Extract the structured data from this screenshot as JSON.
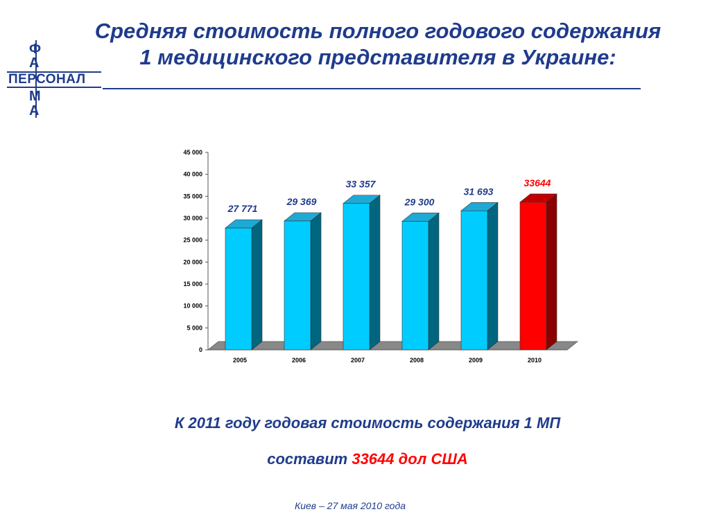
{
  "logo": {
    "letters_top": [
      "Ф",
      "А"
    ],
    "word": "ПЕРСОНАЛ",
    "letters_bottom": [
      "М",
      "А"
    ]
  },
  "header": {
    "title_line1": "Средняя стоимость полного годового содержания",
    "title_line2": "1 медицинского представителя в Украине:"
  },
  "chart_data": {
    "type": "bar",
    "categories": [
      "2005",
      "2006",
      "2007",
      "2008",
      "2009",
      "2010"
    ],
    "values": [
      27771,
      29369,
      33357,
      29300,
      31693,
      33644
    ],
    "data_labels": [
      "27 771",
      "29 369",
      "33 357",
      "29 300",
      "31 693",
      "33644"
    ],
    "ylim": [
      0,
      45000
    ],
    "yticks": [
      0,
      5000,
      10000,
      15000,
      20000,
      25000,
      30000,
      35000,
      40000,
      45000
    ],
    "ytick_labels": [
      "0",
      "5 000",
      "10 000",
      "15 000",
      "20 000",
      "25 000",
      "30 000",
      "35 000",
      "40 000",
      "45 000"
    ],
    "colors": {
      "bar_front": "#00ccff",
      "bar_side": "#006680",
      "bar_top": "#1fa9d6",
      "highlight_front": "#ff0000",
      "highlight_side": "#8b0000",
      "highlight_top": "#c00000",
      "floor": "#888888",
      "label": "#1f3b8c",
      "highlight_label": "#ff0000"
    },
    "highlight_index": 5,
    "grid": false,
    "legend": "none"
  },
  "caption": {
    "line1": "К 2011 году годовая стоимость содержания 1 МП",
    "line2_prefix": "составит ",
    "line2_value": "33644",
    "line2_suffix": " дол США"
  },
  "footer": {
    "text": "Киев – 27 мая 2010 года"
  }
}
